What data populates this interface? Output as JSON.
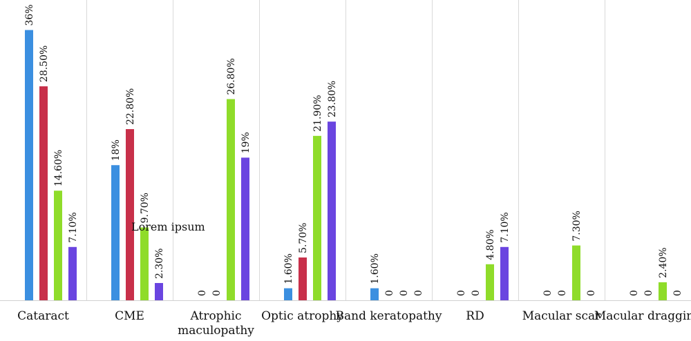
{
  "chart_data": {
    "type": "bar",
    "categories": [
      "Cataract",
      "CME",
      "Atrophic maculopathy",
      "Optic atrophy",
      "Band keratopathy",
      "RD",
      "Macular scar",
      "Macular dragging"
    ],
    "category_label_lines": [
      [
        "Cataract"
      ],
      [
        "CME"
      ],
      [
        "Atrophic",
        "maculopathy"
      ],
      [
        "Optic atrophy"
      ],
      [
        "Band keratopathy"
      ],
      [
        "RD"
      ],
      [
        "Macular scar"
      ],
      [
        "Macular dragging"
      ]
    ],
    "series": [
      {
        "color": "#3b8fe0",
        "values": [
          36,
          18,
          0,
          1.6,
          1.6,
          0,
          0,
          0
        ],
        "labels": [
          "36%",
          "18%",
          "0",
          "1.60%",
          "1.60%",
          "0",
          "0",
          "0"
        ]
      },
      {
        "color": "#c8304a",
        "values": [
          28.5,
          22.8,
          0,
          5.7,
          0,
          0,
          0,
          0
        ],
        "labels": [
          "28.50%",
          "22.80%",
          "0",
          "5.70%",
          "0",
          "0",
          "0",
          "0"
        ]
      },
      {
        "color": "#8fdc2a",
        "values": [
          14.6,
          9.7,
          26.8,
          21.9,
          0,
          4.8,
          7.3,
          2.4
        ],
        "labels": [
          "14.60%",
          "9.70%",
          "26.80%",
          "21.90%",
          "0",
          "4.80%",
          "7.30%",
          "2.40%"
        ]
      },
      {
        "color": "#6a45e0",
        "values": [
          7.1,
          2.3,
          19,
          23.8,
          0,
          7.1,
          0,
          0
        ],
        "labels": [
          "7.10%",
          "2.30%",
          "19%",
          "23.80%",
          "0",
          "7.10%",
          "0",
          "0"
        ]
      }
    ],
    "ylim": [
      0,
      40
    ],
    "grid": "vertical separators between categories",
    "legend": "none",
    "annotation": "Lorem ipsum"
  }
}
